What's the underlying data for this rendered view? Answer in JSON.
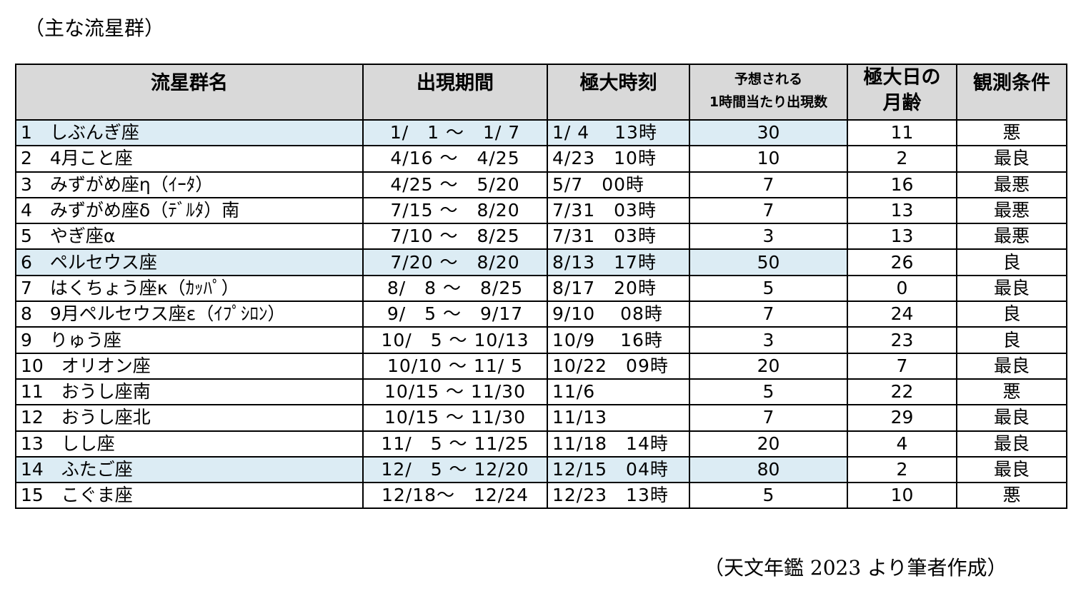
{
  "caption": "（主な流星群）",
  "source": "（天文年鑑 2023 より筆者作成）",
  "headers": {
    "name": "流星群名",
    "period": "出現期間",
    "peak": "極大時刻",
    "rate_line1": "予想される",
    "rate_line2": "1時間当たり出現数",
    "moon_line1": "極大日の",
    "moon_line2": "月齢",
    "condition": "観測条件"
  },
  "highlight_color": "#dcecf4",
  "rows": [
    {
      "name": "1　しぶんぎ座",
      "period": "1/　1 ～　1/ 7",
      "peak": "1/ 4　 13時",
      "rate": "30",
      "moon": "11",
      "condition": "悪",
      "highlight": true
    },
    {
      "name": "2　4月こと座",
      "period": "4/16 ～　4/25",
      "peak": "4/23　10時",
      "rate": "10",
      "moon": "2",
      "condition": "最良",
      "highlight": false
    },
    {
      "name": "3　みずがめ座η（ｲｰﾀ）",
      "period": "4/25 ～　5/20",
      "peak": "5/7　00時",
      "rate": "7",
      "moon": "16",
      "condition": "最悪",
      "highlight": false
    },
    {
      "name": "4　みずがめ座δ（ﾃﾞﾙﾀ）南",
      "period": "7/15 ～　8/20",
      "peak": "7/31　03時",
      "rate": "7",
      "moon": "13",
      "condition": "最悪",
      "highlight": false
    },
    {
      "name": "5　やぎ座α",
      "period": "7/10 ～　8/25",
      "peak": "7/31　03時",
      "rate": "3",
      "moon": "13",
      "condition": "最悪",
      "highlight": false
    },
    {
      "name": "6　ペルセウス座",
      "period": "7/20 ～　8/20",
      "peak": "8/13　17時",
      "rate": "50",
      "moon": "26",
      "condition": "良",
      "highlight": true
    },
    {
      "name": "7　はくちょう座κ（ｶｯﾊﾟ）",
      "period": "8/　8 ～　8/25",
      "peak": "8/17　20時",
      "rate": "5",
      "moon": "0",
      "condition": "最良",
      "highlight": false
    },
    {
      "name": "8　9月ペルセウス座ε（ｲﾌﾟｼﾛﾝ）",
      "period": "9/　5 ～　9/17",
      "peak": "9/10　 08時",
      "rate": "7",
      "moon": "24",
      "condition": "良",
      "highlight": false
    },
    {
      "name": "9　りゅう座",
      "period": "10/　5 ～ 10/13",
      "peak": "10/9　 16時",
      "rate": "3",
      "moon": "23",
      "condition": "良",
      "highlight": false
    },
    {
      "name": "10　オリオン座",
      "period": "10/10 ～ 11/ 5",
      "peak": "10/22　09時",
      "rate": "20",
      "moon": "7",
      "condition": "最良",
      "highlight": false
    },
    {
      "name": "11　おうし座南",
      "period": "10/15 ～ 11/30",
      "peak": "11/6",
      "rate": "5",
      "moon": "22",
      "condition": "悪",
      "highlight": false
    },
    {
      "name": "12　おうし座北",
      "period": "10/15 ～ 11/30",
      "peak": "11/13",
      "rate": "7",
      "moon": "29",
      "condition": "最良",
      "highlight": false
    },
    {
      "name": "13　しし座",
      "period": "11/　5 ～ 11/25",
      "peak": "11/18　14時",
      "rate": "20",
      "moon": "4",
      "condition": "最良",
      "highlight": false
    },
    {
      "name": "14　ふたご座",
      "period": "12/　5 ～ 12/20",
      "peak": "12/15　04時",
      "rate": "80",
      "moon": "2",
      "condition": "最良",
      "highlight": true
    },
    {
      "name": "15　こぐま座",
      "period": "12/18～　12/24",
      "peak": "12/23　13時",
      "rate": "5",
      "moon": "10",
      "condition": "悪",
      "highlight": false
    }
  ]
}
